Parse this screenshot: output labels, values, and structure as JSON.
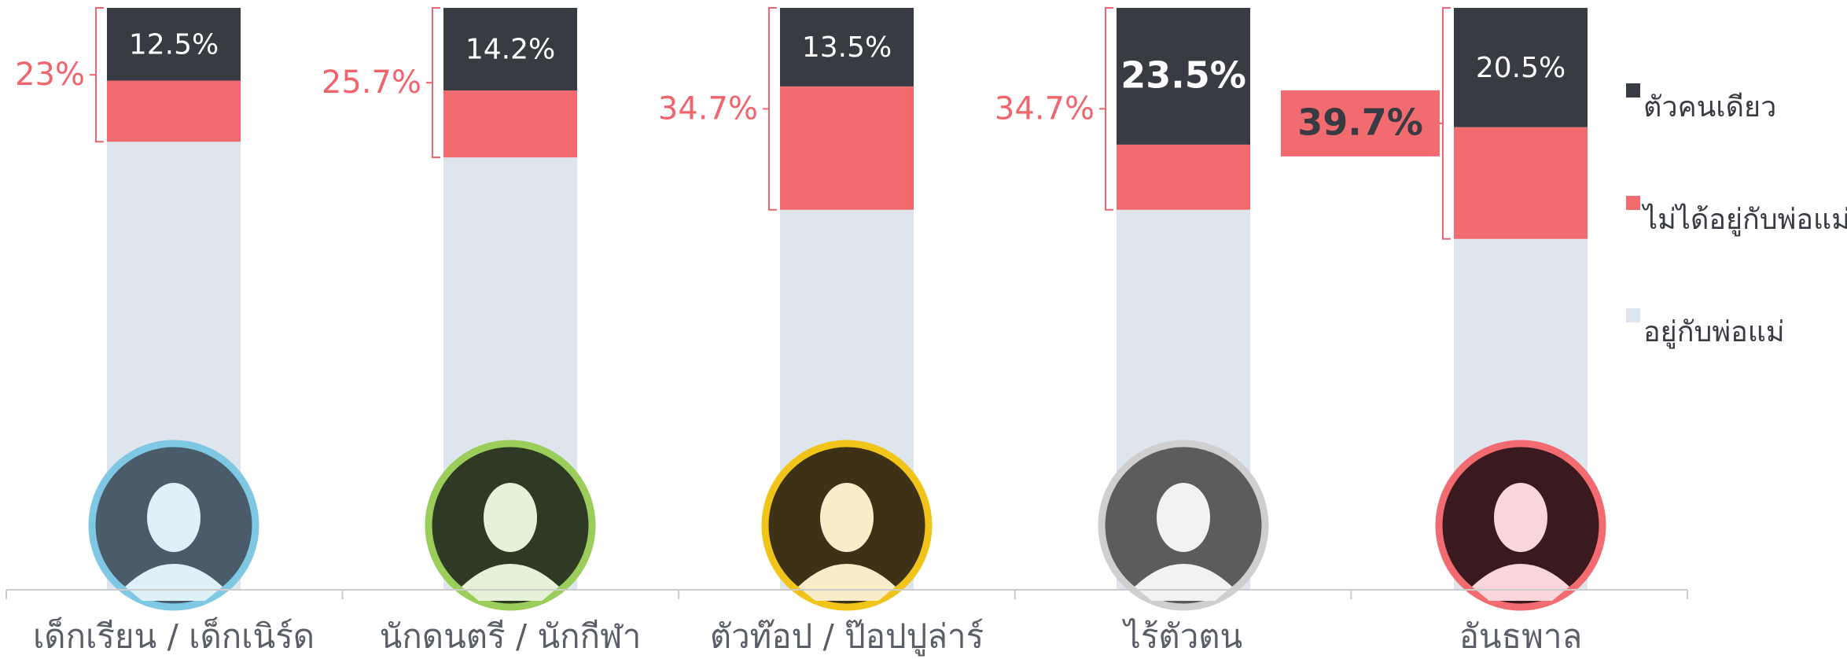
{
  "chart_data": {
    "type": "stacked-bar",
    "categories": [
      "เด็กเรียน / เด็กเนิร์ด",
      "นักดนตรี / นักกีฬา",
      "ตัวท๊อป / ป๊อปปูล่าร์",
      "ไร้ตัวตน",
      "อันธพาล"
    ],
    "series": [
      {
        "name": "ตัวคนเดียว",
        "color": "#383b42",
        "values": [
          12.5,
          14.2,
          13.5,
          23.5,
          20.5
        ],
        "value_labels": [
          "12.5%",
          "14.2%",
          "13.5%",
          "23.5%",
          "20.5%"
        ]
      },
      {
        "name": "ไม่ได้อยู่กับพ่อแม่",
        "color": "#f26b71",
        "values": [
          10.5,
          11.5,
          21.2,
          11.2,
          19.2
        ]
      },
      {
        "name": "อยู่กับพ่อแม่",
        "color": "#dfe5ed",
        "values": [
          77,
          74.3,
          65.3,
          65.3,
          60.3
        ]
      }
    ],
    "bracket_values": [
      23,
      25.7,
      34.7,
      34.7,
      39.7
    ],
    "bracket_labels": [
      "23%",
      "25.7%",
      "34.7%",
      "34.7%",
      "39.7%"
    ],
    "ylim": [
      0,
      100
    ]
  }
}
